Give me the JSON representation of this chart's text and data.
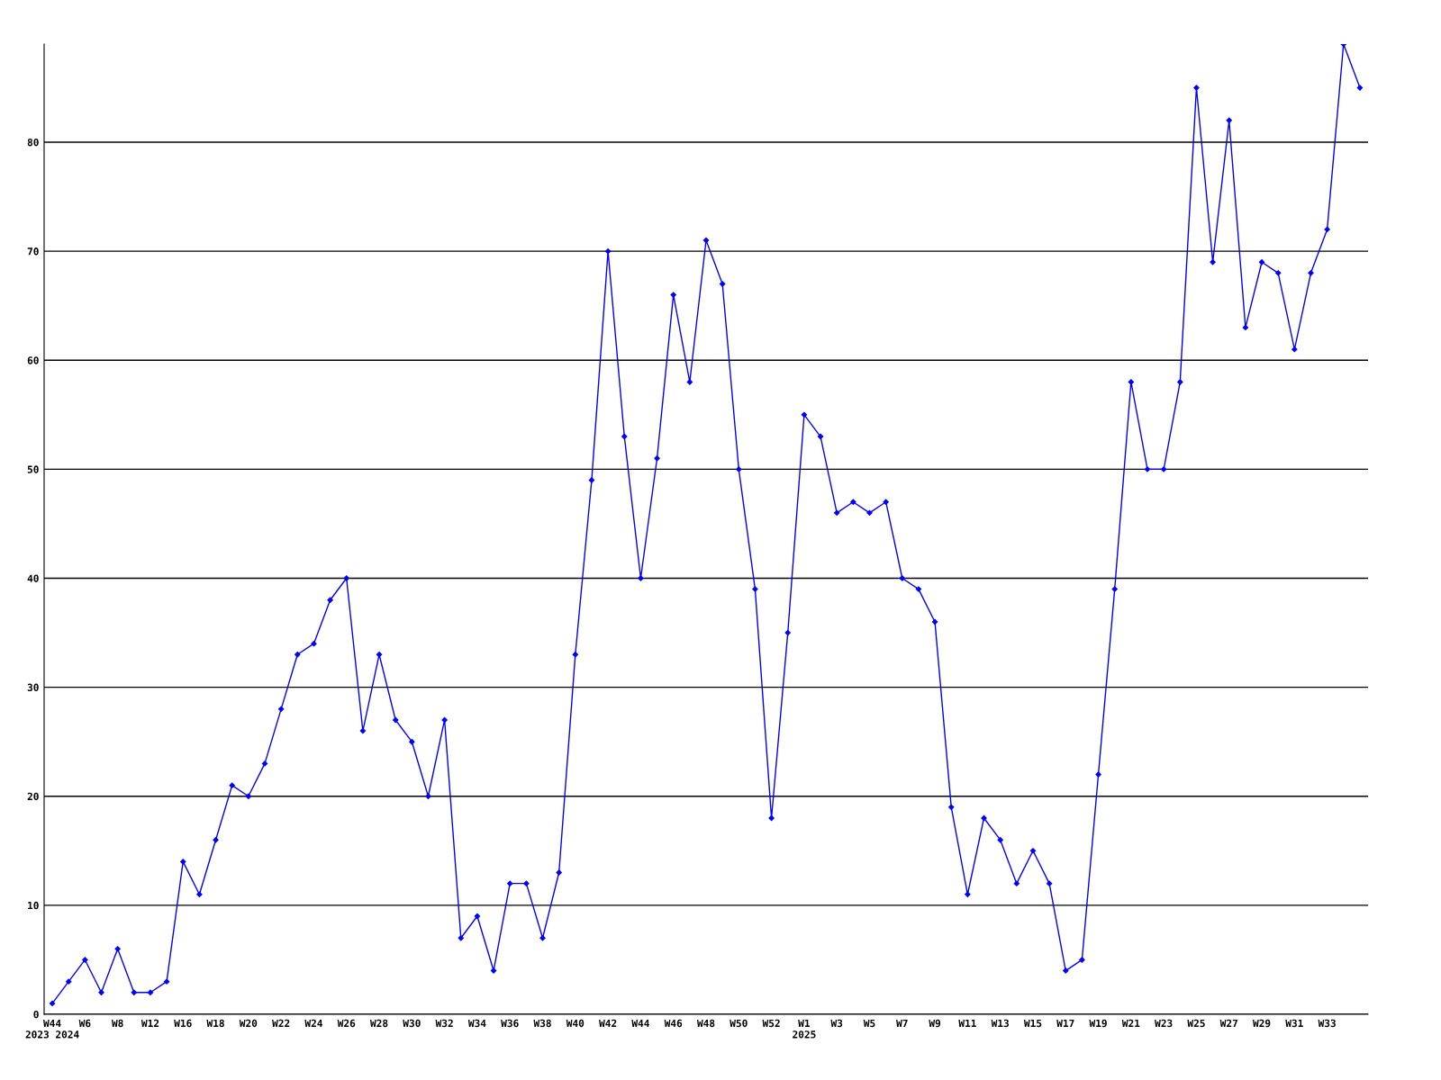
{
  "chart_data": {
    "type": "line",
    "categories": [
      "W44\n2023 2024",
      null,
      "W6",
      null,
      "W8",
      null,
      "W12",
      null,
      "W16",
      null,
      "W18",
      null,
      "W20",
      null,
      "W22",
      null,
      "W24",
      null,
      "W26",
      null,
      "W28",
      null,
      "W30",
      null,
      "W32",
      null,
      "W34",
      null,
      "W36",
      null,
      "W38",
      null,
      "W40",
      null,
      "W42",
      null,
      "W44",
      null,
      "W46",
      null,
      "W48",
      null,
      "W50",
      null,
      "W52",
      null,
      "W1\n2025",
      null,
      "W3",
      null,
      "W5",
      null,
      "W7",
      null,
      "W9",
      null,
      "W11",
      null,
      "W13",
      null,
      "W15",
      null,
      "W17",
      null,
      "W19",
      null,
      "W21",
      null,
      "W23",
      null,
      "W25",
      null,
      "W27",
      null,
      "W29",
      null,
      "W31",
      null,
      "W33",
      null,
      null
    ],
    "series": [
      {
        "color": "#0000ff",
        "values": [
          1,
          3,
          5,
          2,
          6,
          2,
          2,
          3,
          14,
          11,
          16,
          21,
          20,
          23,
          28,
          33,
          34,
          38,
          40,
          26,
          33,
          27,
          25,
          20,
          27,
          7,
          9,
          4,
          12,
          12,
          7,
          13,
          33,
          49,
          70,
          53,
          40,
          51,
          66,
          58,
          71,
          67,
          50,
          39,
          18,
          35,
          55,
          53,
          46,
          47,
          46,
          47,
          40,
          39,
          36,
          19,
          11,
          18,
          16,
          12,
          15,
          12,
          4,
          5,
          22,
          39,
          58,
          50,
          50,
          58,
          85,
          69,
          82,
          63,
          69,
          68,
          61,
          68,
          72,
          89,
          85
        ]
      }
    ],
    "ylim": [
      0,
      89
    ],
    "yticks": [
      0,
      10,
      20,
      30,
      40,
      50,
      60,
      70,
      80
    ],
    "grid": "y",
    "legend": false,
    "marker": "diamond",
    "line_style": "solid"
  }
}
